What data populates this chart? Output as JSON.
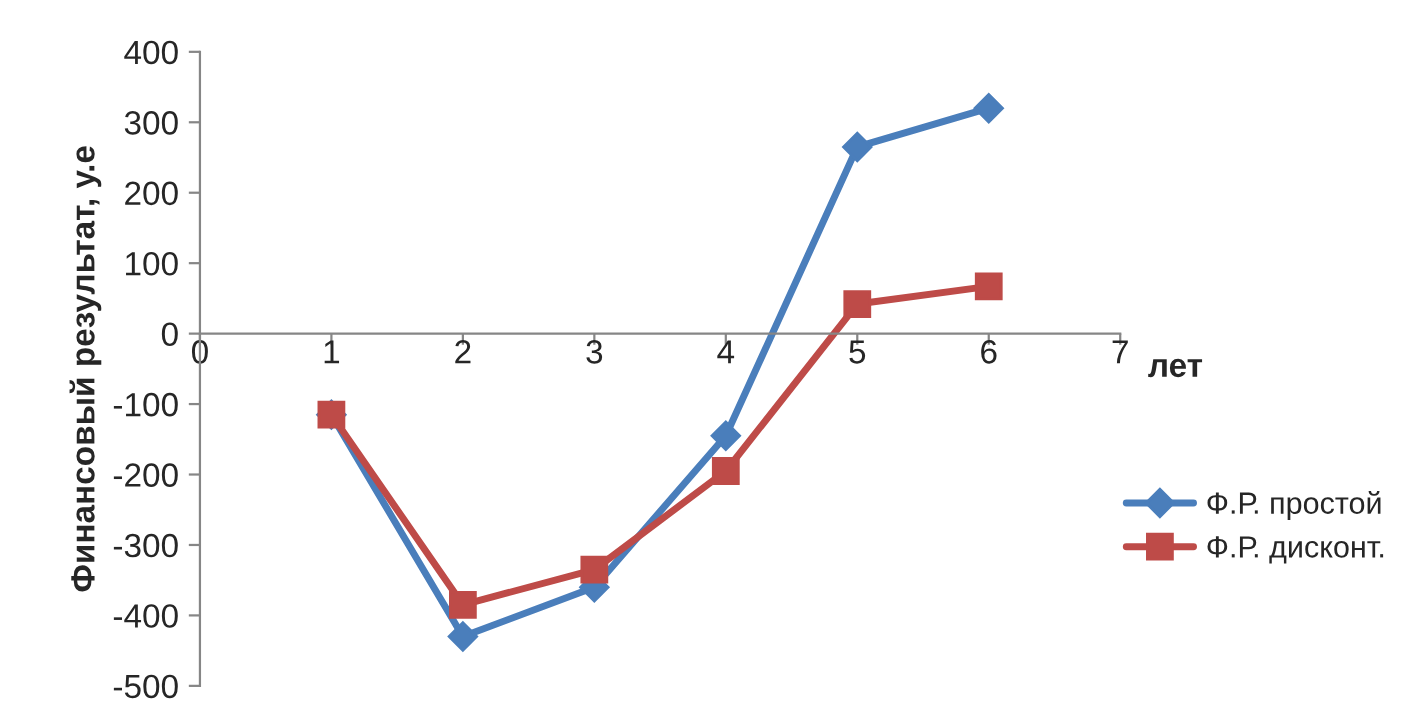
{
  "chart_data": {
    "type": "line",
    "xlabel": "лет",
    "ylabel": "Финансовый результат, у.е",
    "x": [
      1,
      2,
      3,
      4,
      5,
      6
    ],
    "series": [
      {
        "name": "Ф.Р. простой",
        "color": "#4a7ebb",
        "marker": "diamond",
        "values": [
          -115,
          -430,
          -360,
          -145,
          265,
          320
        ]
      },
      {
        "name": "Ф.Р. дисконт.",
        "color": "#be4b48",
        "marker": "square",
        "values": [
          -115,
          -385,
          -335,
          -195,
          42,
          67
        ]
      }
    ],
    "xlim": [
      0,
      7
    ],
    "xticks": [
      0,
      1,
      2,
      3,
      4,
      5,
      6,
      7
    ],
    "ylim": [
      -500,
      400
    ],
    "yticks": [
      -500,
      -400,
      -300,
      -200,
      -100,
      0,
      100,
      200,
      300,
      400
    ],
    "line_style": "solid",
    "grid": false,
    "legend": "right"
  }
}
